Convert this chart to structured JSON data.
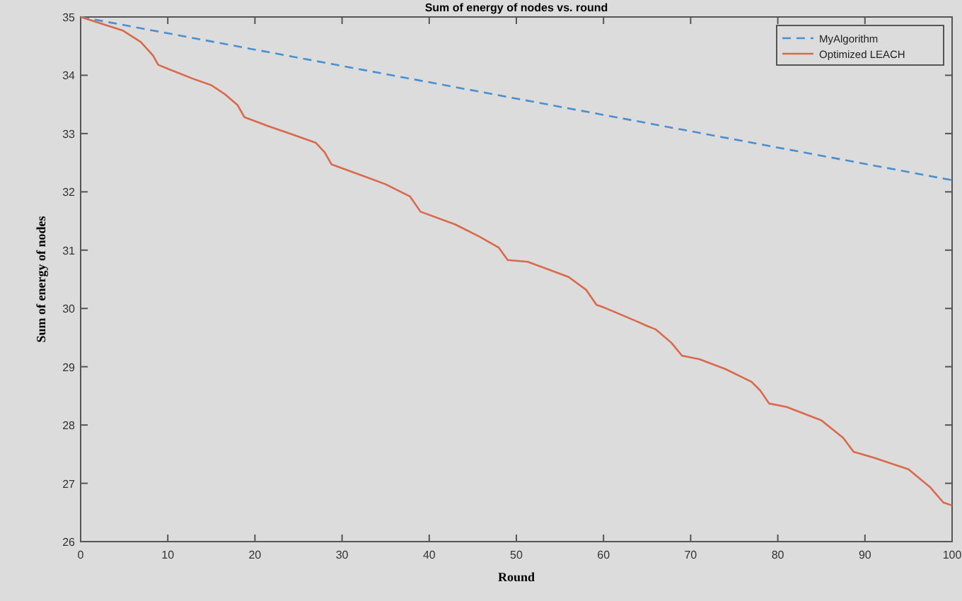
{
  "chart_data": {
    "type": "line",
    "title": "Sum of energy of nodes vs. round",
    "xlabel": "Round",
    "ylabel": "Sum of energy of nodes",
    "xlim": [
      0,
      100
    ],
    "xticks": [
      0,
      10,
      20,
      30,
      40,
      50,
      60,
      70,
      80,
      90,
      100
    ],
    "ylim": [
      26,
      35
    ],
    "yticks": [
      26,
      27,
      28,
      29,
      30,
      31,
      32,
      33,
      34,
      35
    ],
    "grid": false,
    "legend": "top right",
    "marker": "none",
    "series": [
      {
        "name": "MyAlgorithm",
        "color": "#4a8fd0",
        "line_style": "dashed",
        "x": [
          0,
          10,
          20,
          30,
          40,
          50,
          60,
          70,
          80,
          90,
          100
        ],
        "values": [
          35,
          34.72,
          34.44,
          34.16,
          33.88,
          33.6,
          33.32,
          33.04,
          32.76,
          32.48,
          32.2
        ]
      },
      {
        "name": "Optimized LEACH",
        "color": "#d9694a",
        "line_style": "solid",
        "x": [
          0,
          4.8,
          6.9,
          8.3,
          8.9,
          10.2,
          12.9,
          15,
          16.6,
          18,
          18.8,
          21.5,
          24.2,
          27,
          28,
          28.8,
          32.3,
          35,
          37.8,
          39,
          43,
          45.8,
          48,
          49,
          51.3,
          56,
          58,
          59.2,
          60,
          63.8,
          65,
          66,
          67.8,
          69,
          71,
          74,
          77,
          78,
          79,
          81,
          85,
          87.5,
          88.7,
          91,
          95,
          97.5,
          99,
          100
        ],
        "values": [
          35,
          34.77,
          34.57,
          34.34,
          34.18,
          34.1,
          33.94,
          33.83,
          33.67,
          33.49,
          33.28,
          33.13,
          32.99,
          32.84,
          32.68,
          32.47,
          32.28,
          32.13,
          31.92,
          31.66,
          31.44,
          31.23,
          31.04,
          30.83,
          30.8,
          30.54,
          30.32,
          30.06,
          30.02,
          29.78,
          29.7,
          29.64,
          29.41,
          29.19,
          29.13,
          28.96,
          28.74,
          28.59,
          28.37,
          28.31,
          28.08,
          27.78,
          27.54,
          27.44,
          27.24,
          26.93,
          26.67,
          26.62
        ]
      }
    ]
  }
}
